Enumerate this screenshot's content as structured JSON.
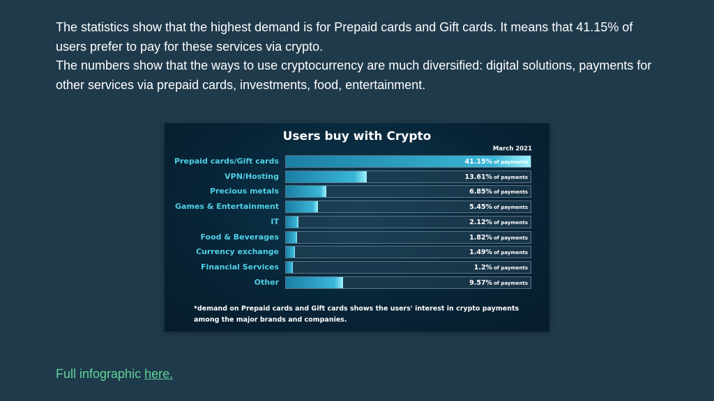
{
  "intro": {
    "paragraph1": "The statistics show that the highest demand is for Prepaid cards and Gift cards. It means that 41.15% of users prefer to pay for these services via crypto.",
    "paragraph2": "The numbers show that the ways to use cryptocurrency are much diversified: digital solutions, payments for other services via prepaid cards, investments, food, entertainment."
  },
  "colors": {
    "background": "#1f3a4b",
    "bar_fill": "#3ab6d6",
    "label": "#4fd0e6",
    "link": "#63d39a"
  },
  "chart_data": {
    "type": "bar",
    "orientation": "horizontal",
    "title": "Users buy with Crypto",
    "subtitle": "March 2021",
    "value_unit": "of payments",
    "categories": [
      "Prepaid cards/Gift cards",
      "VPN/Hosting",
      "Precious metals",
      "Games & Entertainment",
      "IT",
      "Food & Beverages",
      "Currency exchange",
      "Financial Services",
      "Other"
    ],
    "values": [
      41.15,
      13.61,
      6.85,
      5.45,
      2.12,
      1.82,
      1.49,
      1.2,
      9.57
    ],
    "value_labels": [
      "41.15%",
      "13.61%",
      "6.85%",
      "5.45%",
      "2.12%",
      "1.82%",
      "1.49%",
      "1.2%",
      "9.57%"
    ],
    "xlim": [
      0,
      41.15
    ],
    "footnote": "*demand on Prepaid cards and Gift cards shows the users' interest in crypto payments among the major brands and companies."
  },
  "footer": {
    "text": "Full infographic ",
    "link_text": "here."
  }
}
